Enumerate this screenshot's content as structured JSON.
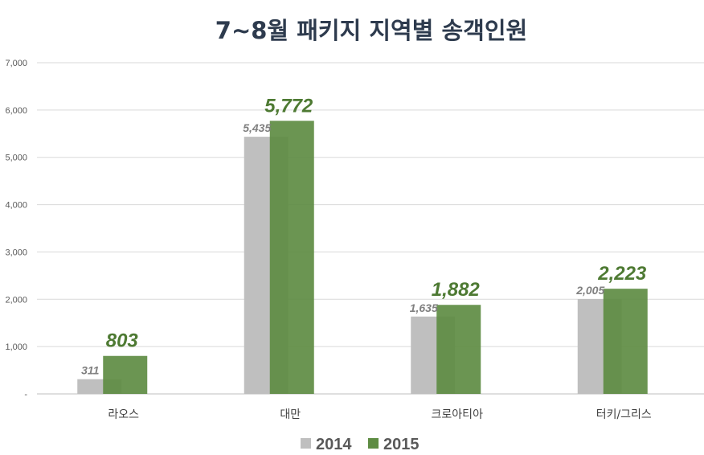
{
  "chart_data": {
    "type": "bar",
    "title": "7~8월 패키지 지역별 송객인원",
    "categories": [
      "라오스",
      "대만",
      "크로아티아",
      "터키/그리스"
    ],
    "series": [
      {
        "name": "2014",
        "values": [
          311,
          5435,
          1635,
          2005
        ],
        "labels": [
          "311",
          "5,435",
          "1,635",
          "2,005"
        ],
        "color": "#bfbfbf"
      },
      {
        "name": "2015",
        "values": [
          803,
          5772,
          1882,
          2223
        ],
        "labels": [
          "803",
          "5,772",
          "1,882",
          "2,223"
        ],
        "color": "#5e8c43"
      }
    ],
    "ylim": [
      0,
      7000
    ],
    "yticks": [
      0,
      1000,
      2000,
      3000,
      4000,
      5000,
      6000,
      7000
    ],
    "ytick_labels": [
      "-",
      "1,000",
      "2,000",
      "3,000",
      "4,000",
      "5,000",
      "6,000",
      "7,000"
    ],
    "grid": true,
    "legend_position": "bottom",
    "overlap": true
  }
}
